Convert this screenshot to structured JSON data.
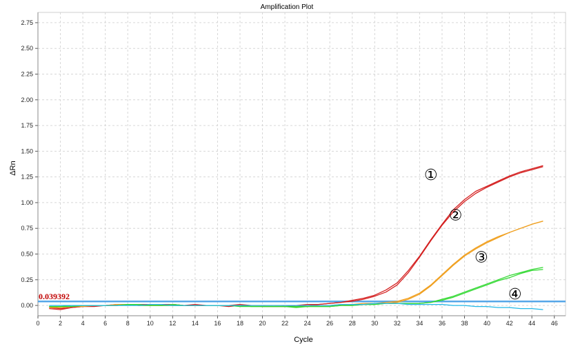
{
  "chart_data": {
    "type": "line",
    "title": "Amplification Plot",
    "xlabel": "Cycle",
    "ylabel": "ΔRn",
    "xlim": [
      0,
      47
    ],
    "ylim": [
      -0.1,
      2.85
    ],
    "x_ticks": [
      0,
      2,
      4,
      6,
      8,
      10,
      12,
      14,
      16,
      18,
      20,
      22,
      24,
      26,
      28,
      30,
      32,
      34,
      36,
      38,
      40,
      42,
      44,
      46
    ],
    "y_ticks": [
      0.0,
      0.25,
      0.5,
      0.75,
      1.0,
      1.25,
      1.5,
      1.75,
      2.0,
      2.25,
      2.5,
      2.75
    ],
    "grid": true,
    "threshold": {
      "value": 0.039392,
      "label": "0.039392",
      "color": "#55a6e8"
    },
    "series": [
      {
        "color": "#d42020",
        "x": [
          1,
          2,
          3,
          4,
          5,
          6,
          7,
          8,
          9,
          10,
          11,
          12,
          13,
          14,
          15,
          16,
          17,
          18,
          19,
          20,
          21,
          22,
          23,
          24,
          25,
          26,
          27,
          28,
          29,
          30,
          31,
          32,
          33,
          34,
          35,
          36,
          37,
          38,
          39,
          40,
          41,
          42,
          43,
          44,
          45
        ],
        "y": [
          -0.03,
          -0.04,
          -0.02,
          -0.01,
          -0.01,
          0.0,
          0.0,
          0.01,
          0.01,
          0.01,
          0.0,
          0.01,
          0.0,
          0.0,
          0.0,
          0.0,
          -0.01,
          0.0,
          0.0,
          -0.01,
          -0.01,
          -0.01,
          0.0,
          0.0,
          0.01,
          0.02,
          0.03,
          0.04,
          0.06,
          0.09,
          0.13,
          0.2,
          0.32,
          0.47,
          0.63,
          0.78,
          0.91,
          1.01,
          1.09,
          1.15,
          1.2,
          1.25,
          1.29,
          1.32,
          1.35
        ]
      },
      {
        "color": "#d42020",
        "x": [
          1,
          2,
          3,
          4,
          5,
          6,
          7,
          8,
          9,
          10,
          11,
          12,
          13,
          14,
          15,
          16,
          17,
          18,
          19,
          20,
          21,
          22,
          23,
          24,
          25,
          26,
          27,
          28,
          29,
          30,
          31,
          32,
          33,
          34,
          35,
          36,
          37,
          38,
          39,
          40,
          41,
          42,
          43,
          44,
          45
        ],
        "y": [
          -0.02,
          -0.03,
          -0.02,
          -0.01,
          0.0,
          0.0,
          0.01,
          0.01,
          0.01,
          0.01,
          0.01,
          0.01,
          0.0,
          0.01,
          0.0,
          0.0,
          0.0,
          0.01,
          0.0,
          0.0,
          -0.01,
          0.0,
          0.0,
          0.01,
          0.01,
          0.02,
          0.03,
          0.05,
          0.07,
          0.1,
          0.15,
          0.22,
          0.34,
          0.48,
          0.64,
          0.79,
          0.93,
          1.03,
          1.11,
          1.16,
          1.21,
          1.26,
          1.3,
          1.33,
          1.36
        ]
      },
      {
        "color": "#f0a020",
        "x": [
          1,
          2,
          3,
          4,
          5,
          6,
          7,
          8,
          9,
          10,
          11,
          12,
          13,
          14,
          15,
          16,
          17,
          18,
          19,
          20,
          21,
          22,
          23,
          24,
          25,
          26,
          27,
          28,
          29,
          30,
          31,
          32,
          33,
          34,
          35,
          36,
          37,
          38,
          39,
          40,
          41,
          42,
          43,
          44,
          45
        ],
        "y": [
          -0.02,
          -0.02,
          -0.01,
          -0.01,
          0.0,
          0.0,
          0.0,
          0.01,
          0.0,
          0.01,
          0.0,
          0.0,
          0.0,
          0.0,
          0.0,
          0.0,
          0.0,
          0.0,
          0.0,
          -0.01,
          -0.01,
          -0.01,
          -0.01,
          -0.01,
          0.0,
          0.0,
          0.01,
          0.01,
          0.01,
          0.02,
          0.02,
          0.03,
          0.06,
          0.11,
          0.19,
          0.29,
          0.39,
          0.48,
          0.55,
          0.61,
          0.66,
          0.71,
          0.75,
          0.79,
          0.82
        ]
      },
      {
        "color": "#f0a020",
        "x": [
          1,
          2,
          3,
          4,
          5,
          6,
          7,
          8,
          9,
          10,
          11,
          12,
          13,
          14,
          15,
          16,
          17,
          18,
          19,
          20,
          21,
          22,
          23,
          24,
          25,
          26,
          27,
          28,
          29,
          30,
          31,
          32,
          33,
          34,
          35,
          36,
          37,
          38,
          39,
          40,
          41,
          42,
          43,
          44,
          45
        ],
        "y": [
          -0.01,
          -0.02,
          -0.01,
          0.0,
          0.0,
          0.0,
          0.01,
          0.01,
          0.0,
          0.0,
          0.0,
          0.01,
          0.0,
          0.0,
          0.0,
          0.0,
          0.0,
          0.0,
          0.0,
          -0.01,
          0.0,
          -0.01,
          -0.01,
          -0.01,
          0.0,
          0.0,
          0.0,
          0.01,
          0.02,
          0.02,
          0.03,
          0.04,
          0.07,
          0.12,
          0.2,
          0.3,
          0.4,
          0.49,
          0.56,
          0.62,
          0.67,
          0.71,
          0.75,
          0.79,
          0.82
        ]
      },
      {
        "color": "#30d830",
        "x": [
          1,
          2,
          3,
          4,
          5,
          6,
          7,
          8,
          9,
          10,
          11,
          12,
          13,
          14,
          15,
          16,
          17,
          18,
          19,
          20,
          21,
          22,
          23,
          24,
          25,
          26,
          27,
          28,
          29,
          30,
          31,
          32,
          33,
          34,
          35,
          36,
          37,
          38,
          39,
          40,
          41,
          42,
          43,
          44,
          45
        ],
        "y": [
          -0.01,
          -0.01,
          -0.01,
          0.0,
          0.0,
          0.0,
          0.0,
          0.01,
          0.01,
          0.0,
          0.0,
          0.01,
          0.0,
          0.0,
          0.0,
          0.0,
          0.0,
          -0.01,
          -0.01,
          -0.01,
          -0.01,
          -0.01,
          -0.01,
          -0.01,
          -0.01,
          -0.01,
          0.0,
          0.0,
          0.01,
          0.01,
          0.02,
          0.02,
          0.02,
          0.02,
          0.03,
          0.05,
          0.08,
          0.12,
          0.16,
          0.2,
          0.24,
          0.27,
          0.31,
          0.34,
          0.35
        ]
      },
      {
        "color": "#30d830",
        "x": [
          1,
          2,
          3,
          4,
          5,
          6,
          7,
          8,
          9,
          10,
          11,
          12,
          13,
          14,
          15,
          16,
          17,
          18,
          19,
          20,
          21,
          22,
          23,
          24,
          25,
          26,
          27,
          28,
          29,
          30,
          31,
          32,
          33,
          34,
          35,
          36,
          37,
          38,
          39,
          40,
          41,
          42,
          43,
          44,
          45
        ],
        "y": [
          -0.01,
          -0.01,
          0.0,
          0.0,
          0.0,
          0.0,
          0.0,
          0.01,
          0.0,
          0.0,
          0.0,
          0.0,
          0.0,
          0.0,
          0.0,
          0.0,
          0.0,
          0.0,
          -0.01,
          -0.01,
          -0.01,
          -0.01,
          -0.02,
          -0.01,
          -0.01,
          -0.01,
          0.0,
          0.0,
          0.01,
          0.01,
          0.02,
          0.02,
          0.02,
          0.02,
          0.03,
          0.06,
          0.09,
          0.13,
          0.17,
          0.21,
          0.25,
          0.29,
          0.32,
          0.35,
          0.37
        ]
      },
      {
        "color": "#20b8e8",
        "x": [
          1,
          2,
          3,
          4,
          5,
          6,
          7,
          8,
          9,
          10,
          11,
          12,
          13,
          14,
          15,
          16,
          17,
          18,
          19,
          20,
          21,
          22,
          23,
          24,
          25,
          26,
          27,
          28,
          29,
          30,
          31,
          32,
          33,
          34,
          35,
          36,
          37,
          38,
          39,
          40,
          41,
          42,
          43,
          44,
          45
        ],
        "y": [
          0.0,
          0.0,
          0.0,
          0.0,
          0.0,
          0.0,
          0.0,
          0.0,
          0.0,
          0.01,
          0.01,
          0.0,
          0.0,
          0.0,
          0.0,
          0.0,
          0.0,
          0.0,
          0.0,
          0.0,
          0.0,
          0.0,
          0.0,
          0.0,
          0.0,
          0.0,
          0.01,
          0.01,
          0.01,
          0.02,
          0.02,
          0.02,
          0.01,
          0.01,
          0.01,
          0.01,
          0.0,
          0.0,
          -0.01,
          -0.01,
          -0.02,
          -0.02,
          -0.03,
          -0.03,
          -0.04
        ]
      }
    ],
    "annotations": [
      {
        "text": "①",
        "x": 35.0,
        "y": 1.22
      },
      {
        "text": "②",
        "x": 37.2,
        "y": 0.83
      },
      {
        "text": "③",
        "x": 39.5,
        "y": 0.42
      },
      {
        "text": "④",
        "x": 42.5,
        "y": 0.06
      }
    ]
  }
}
